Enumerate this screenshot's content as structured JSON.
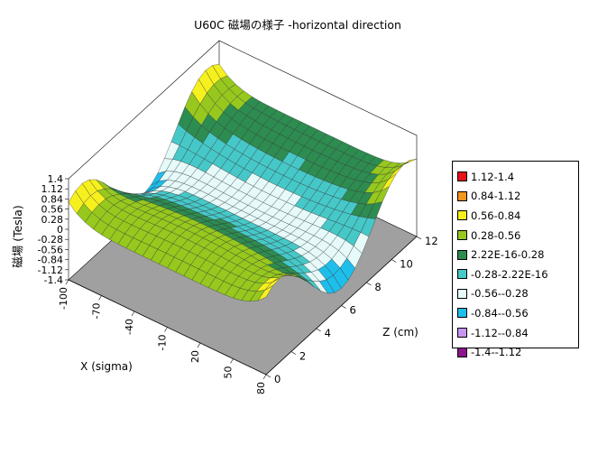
{
  "chart_data": {
    "type": "surface",
    "title": "U60C 磁場の様子 -horizontal direction",
    "xlabel": "X (sigma)",
    "ylabel": "Z (cm)",
    "zlabel": "磁場 (Tesla)",
    "x_ticks": [
      "-100",
      "-70",
      "-40",
      "-10",
      "20",
      "50",
      "80"
    ],
    "y_ticks": [
      "0",
      "2",
      "4",
      "6",
      "8",
      "10",
      "12"
    ],
    "z_ticks": [
      "1.4",
      "1.12",
      "0.84",
      "0.56",
      "0.28",
      "0",
      "-0.28",
      "-0.56",
      "-0.84",
      "-1.12",
      "-1.4"
    ],
    "xlim": [
      -100,
      85
    ],
    "ylim": [
      0,
      12
    ],
    "zlim": [
      -1.4,
      1.4
    ],
    "legend": [
      {
        "label": "1.12-1.4",
        "color": "#e8141c"
      },
      {
        "label": "0.84-1.12",
        "color": "#f5961e"
      },
      {
        "label": "0.56-0.84",
        "color": "#f6f01e"
      },
      {
        "label": "0.28-0.56",
        "color": "#96c81e"
      },
      {
        "label": "2.22E-16-0.28",
        "color": "#2d8c50"
      },
      {
        "label": "-0.28-2.22E-16",
        "color": "#46c8c8"
      },
      {
        "label": "-0.56--0.28",
        "color": "#e6fafa"
      },
      {
        "label": "-0.84--0.56",
        "color": "#1ebeeb"
      },
      {
        "label": "-1.12--0.84",
        "color": "#c896f0"
      },
      {
        "label": "-1.4--1.12",
        "color": "#8c148c"
      }
    ],
    "floor_color": "#a0a0a0"
  }
}
